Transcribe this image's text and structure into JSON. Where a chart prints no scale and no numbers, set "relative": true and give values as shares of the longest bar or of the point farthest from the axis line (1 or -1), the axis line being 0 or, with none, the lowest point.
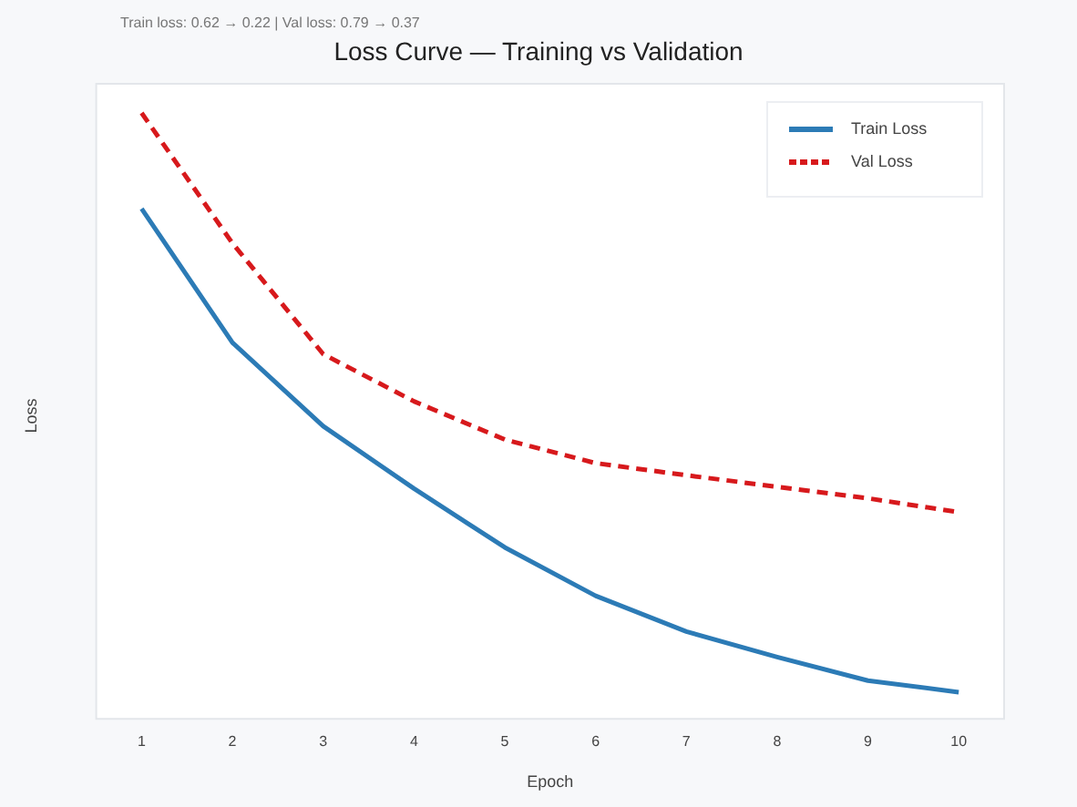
{
  "chart_data": {
    "type": "line",
    "title": "Loss Curve — Training vs Validation",
    "annotations": [
      "Train loss: 0.62 → 0.22 | Val loss: 0.79 → 0.37"
    ],
    "xlabel": "Epoch",
    "ylabel": "Loss",
    "categories": [
      "1",
      "2",
      "3",
      "4",
      "5",
      "6",
      "7",
      "8",
      "9",
      "10"
    ],
    "relative": true,
    "legend": "top right",
    "series": [
      {
        "name": "Train Loss",
        "color": "#2c7bb6",
        "line_style": "solid",
        "values": [
          0.842,
          0.621,
          0.483,
          0.38,
          0.283,
          0.203,
          0.144,
          0.102,
          0.063,
          0.044
        ]
      },
      {
        "name": "Val Loss",
        "color": "#d7191c",
        "line_style": "dashed",
        "values": [
          1,
          0.785,
          0.602,
          0.524,
          0.461,
          0.422,
          0.402,
          0.383,
          0.364,
          0.341
        ]
      }
    ]
  }
}
